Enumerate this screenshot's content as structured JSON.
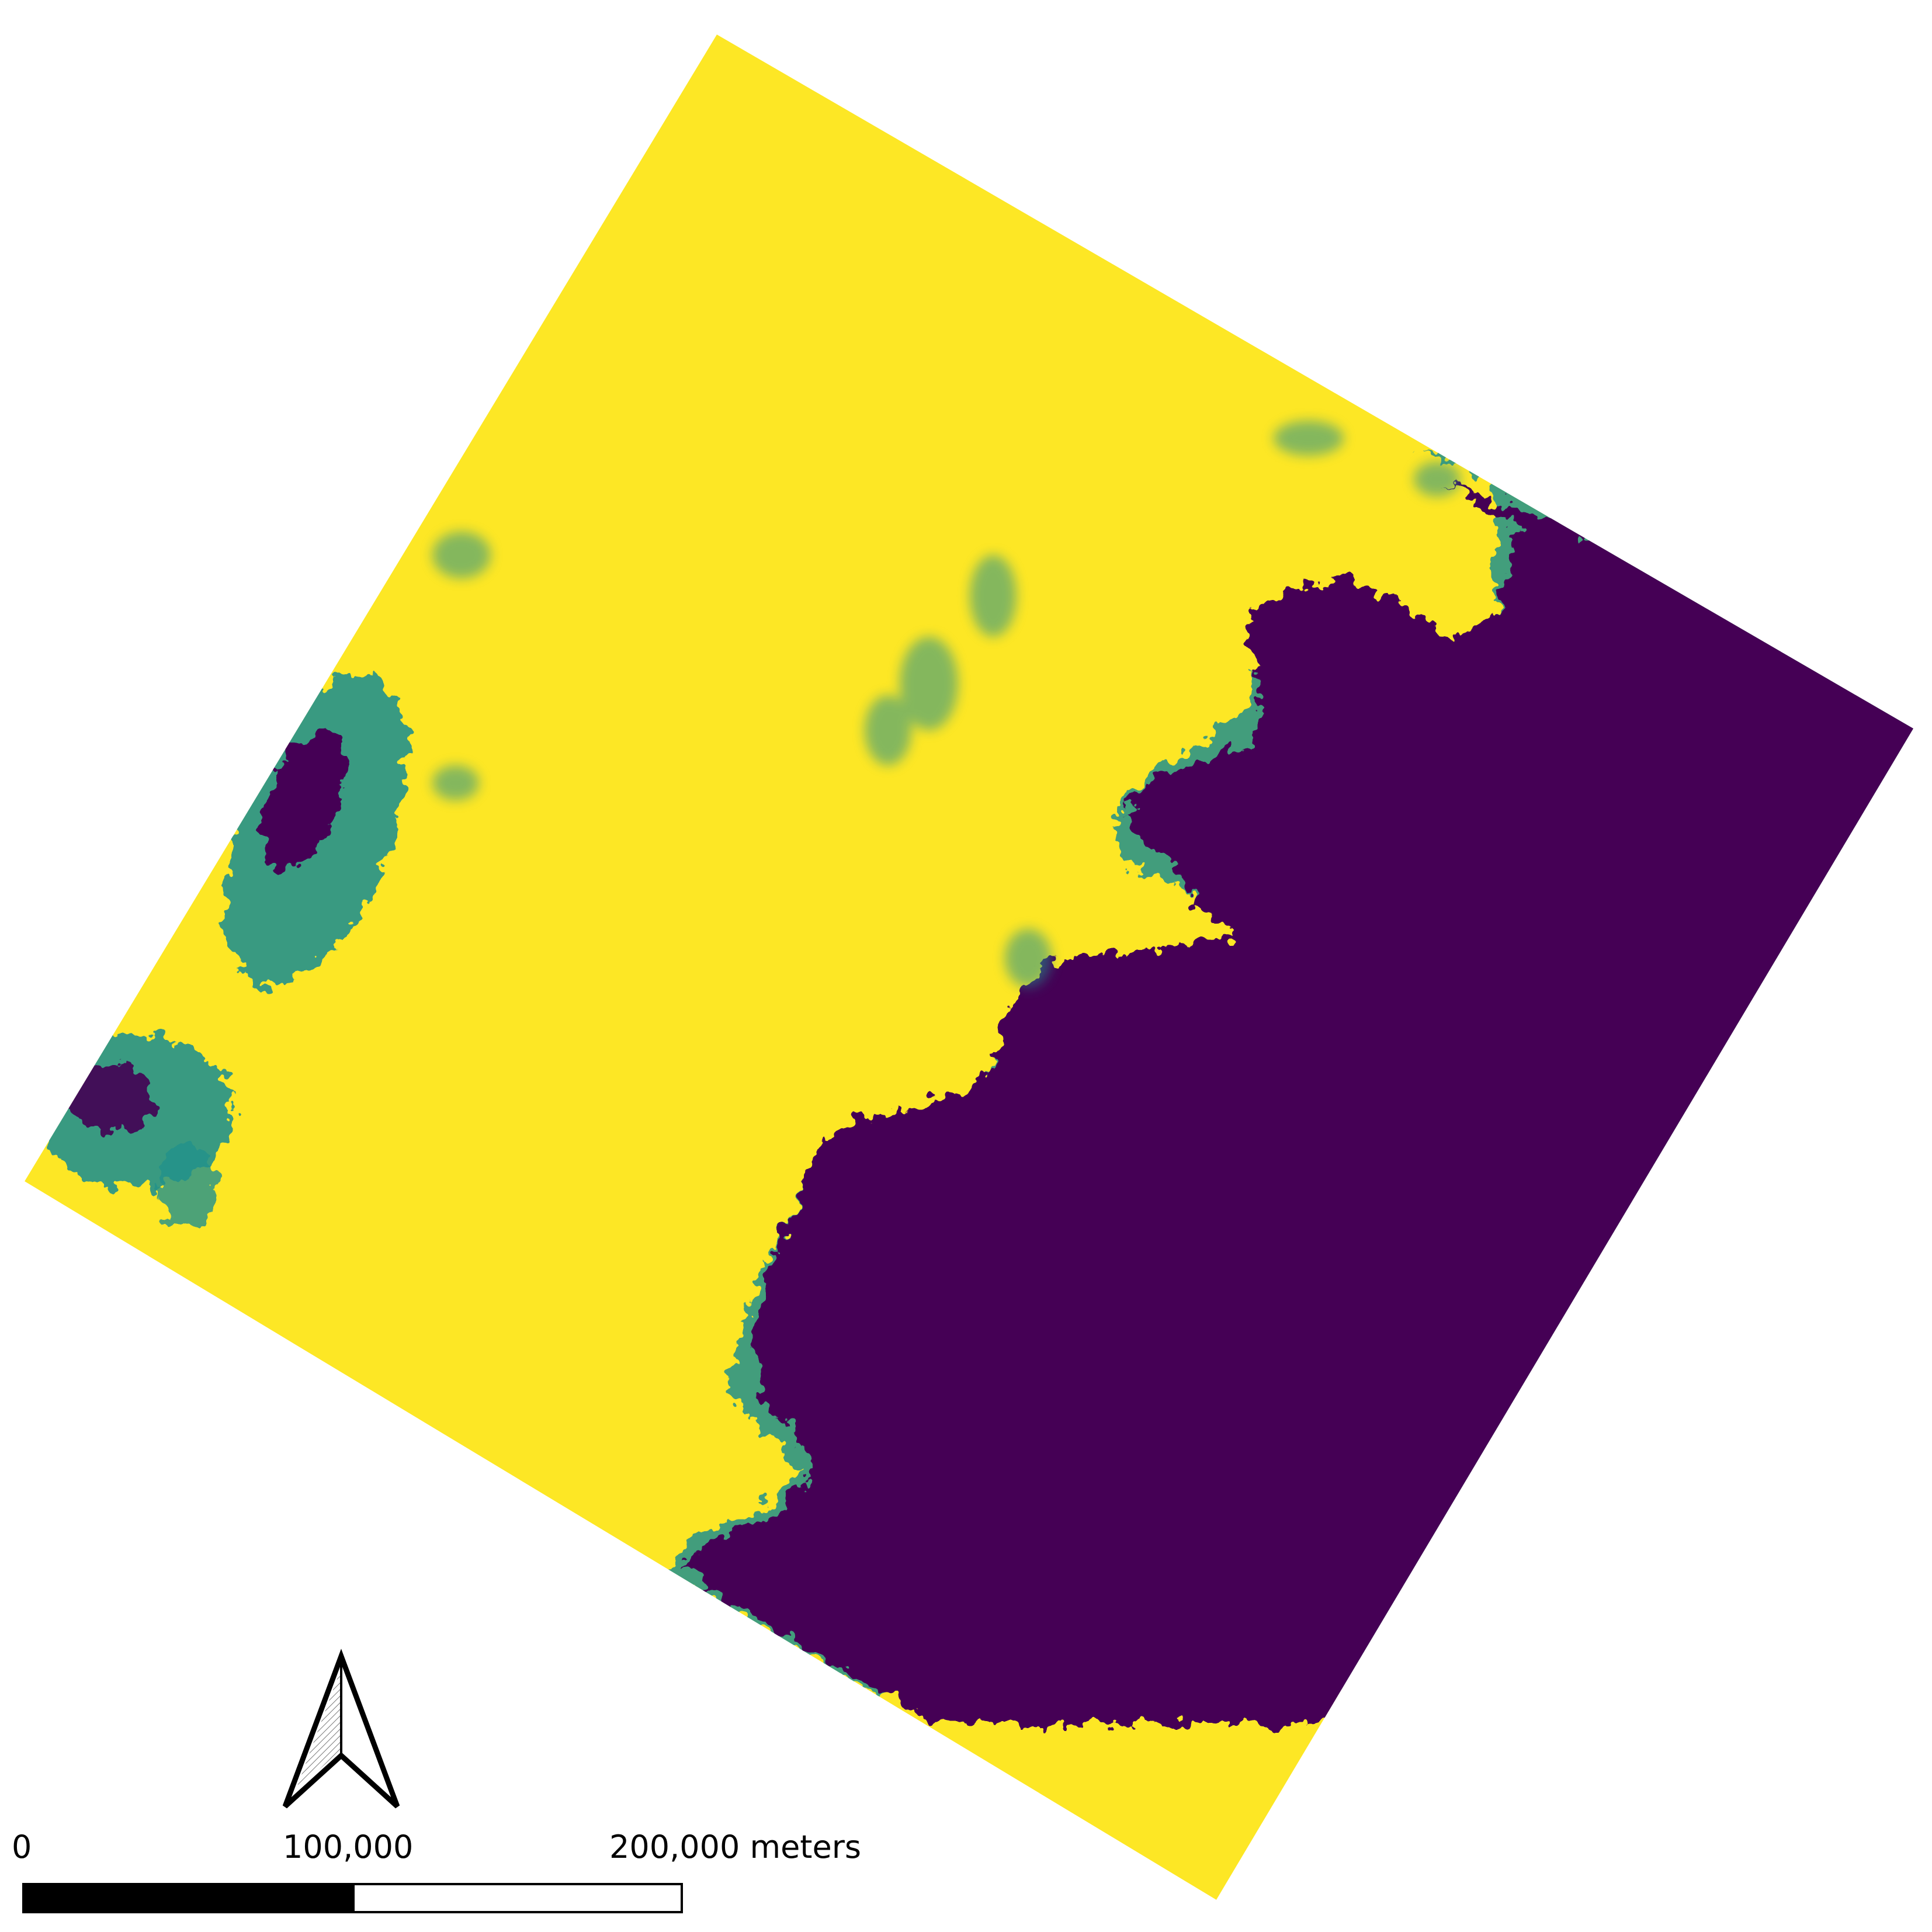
{
  "map": {
    "colors": {
      "high": "#fde725",
      "low": "#440154",
      "transition": "#21918c",
      "transition_light": "#5ec962",
      "background": "#ffffff"
    },
    "north_arrow": {
      "icon": "north-arrow-icon"
    },
    "scale_bar": {
      "label_0": "0",
      "label_1": "100,000",
      "label_2": "200,000 meters"
    }
  }
}
